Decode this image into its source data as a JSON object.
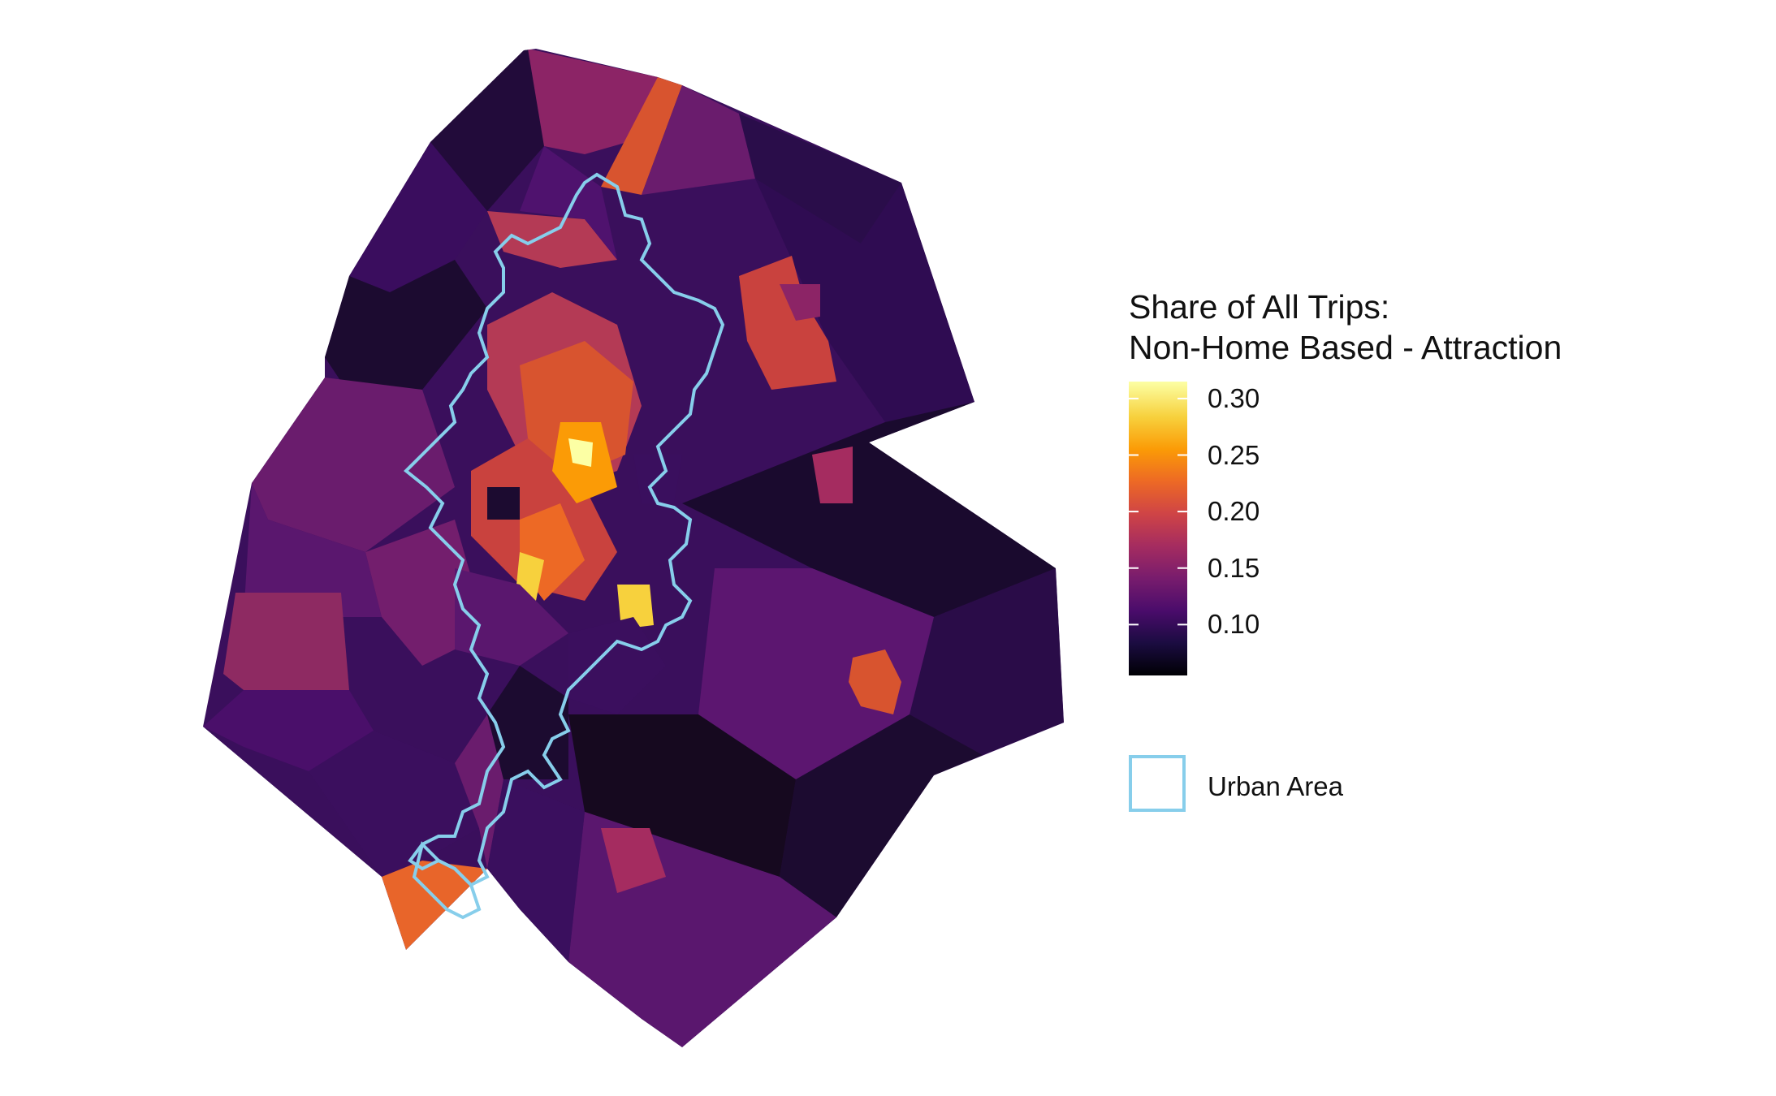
{
  "legend": {
    "title_line1": "Share of All Trips:",
    "title_line2": "Non-Home Based - Attraction",
    "ticks": [
      {
        "label": "0.30",
        "value": 0.3
      },
      {
        "label": "0.25",
        "value": 0.25
      },
      {
        "label": "0.20",
        "value": 0.2
      },
      {
        "label": "0.15",
        "value": 0.15
      },
      {
        "label": "0.10",
        "value": 0.1
      }
    ],
    "scale_min": 0.055,
    "scale_max": 0.315,
    "urban_area_label": "Urban Area",
    "urban_area_color": "#87CEEB"
  },
  "palette": {
    "name": "inferno",
    "stops": [
      "#000004",
      "#1b0c41",
      "#4a0c6b",
      "#781c6d",
      "#a52c60",
      "#cf4446",
      "#ed6925",
      "#fb9b06",
      "#f7d13d",
      "#fcffa4"
    ]
  }
}
